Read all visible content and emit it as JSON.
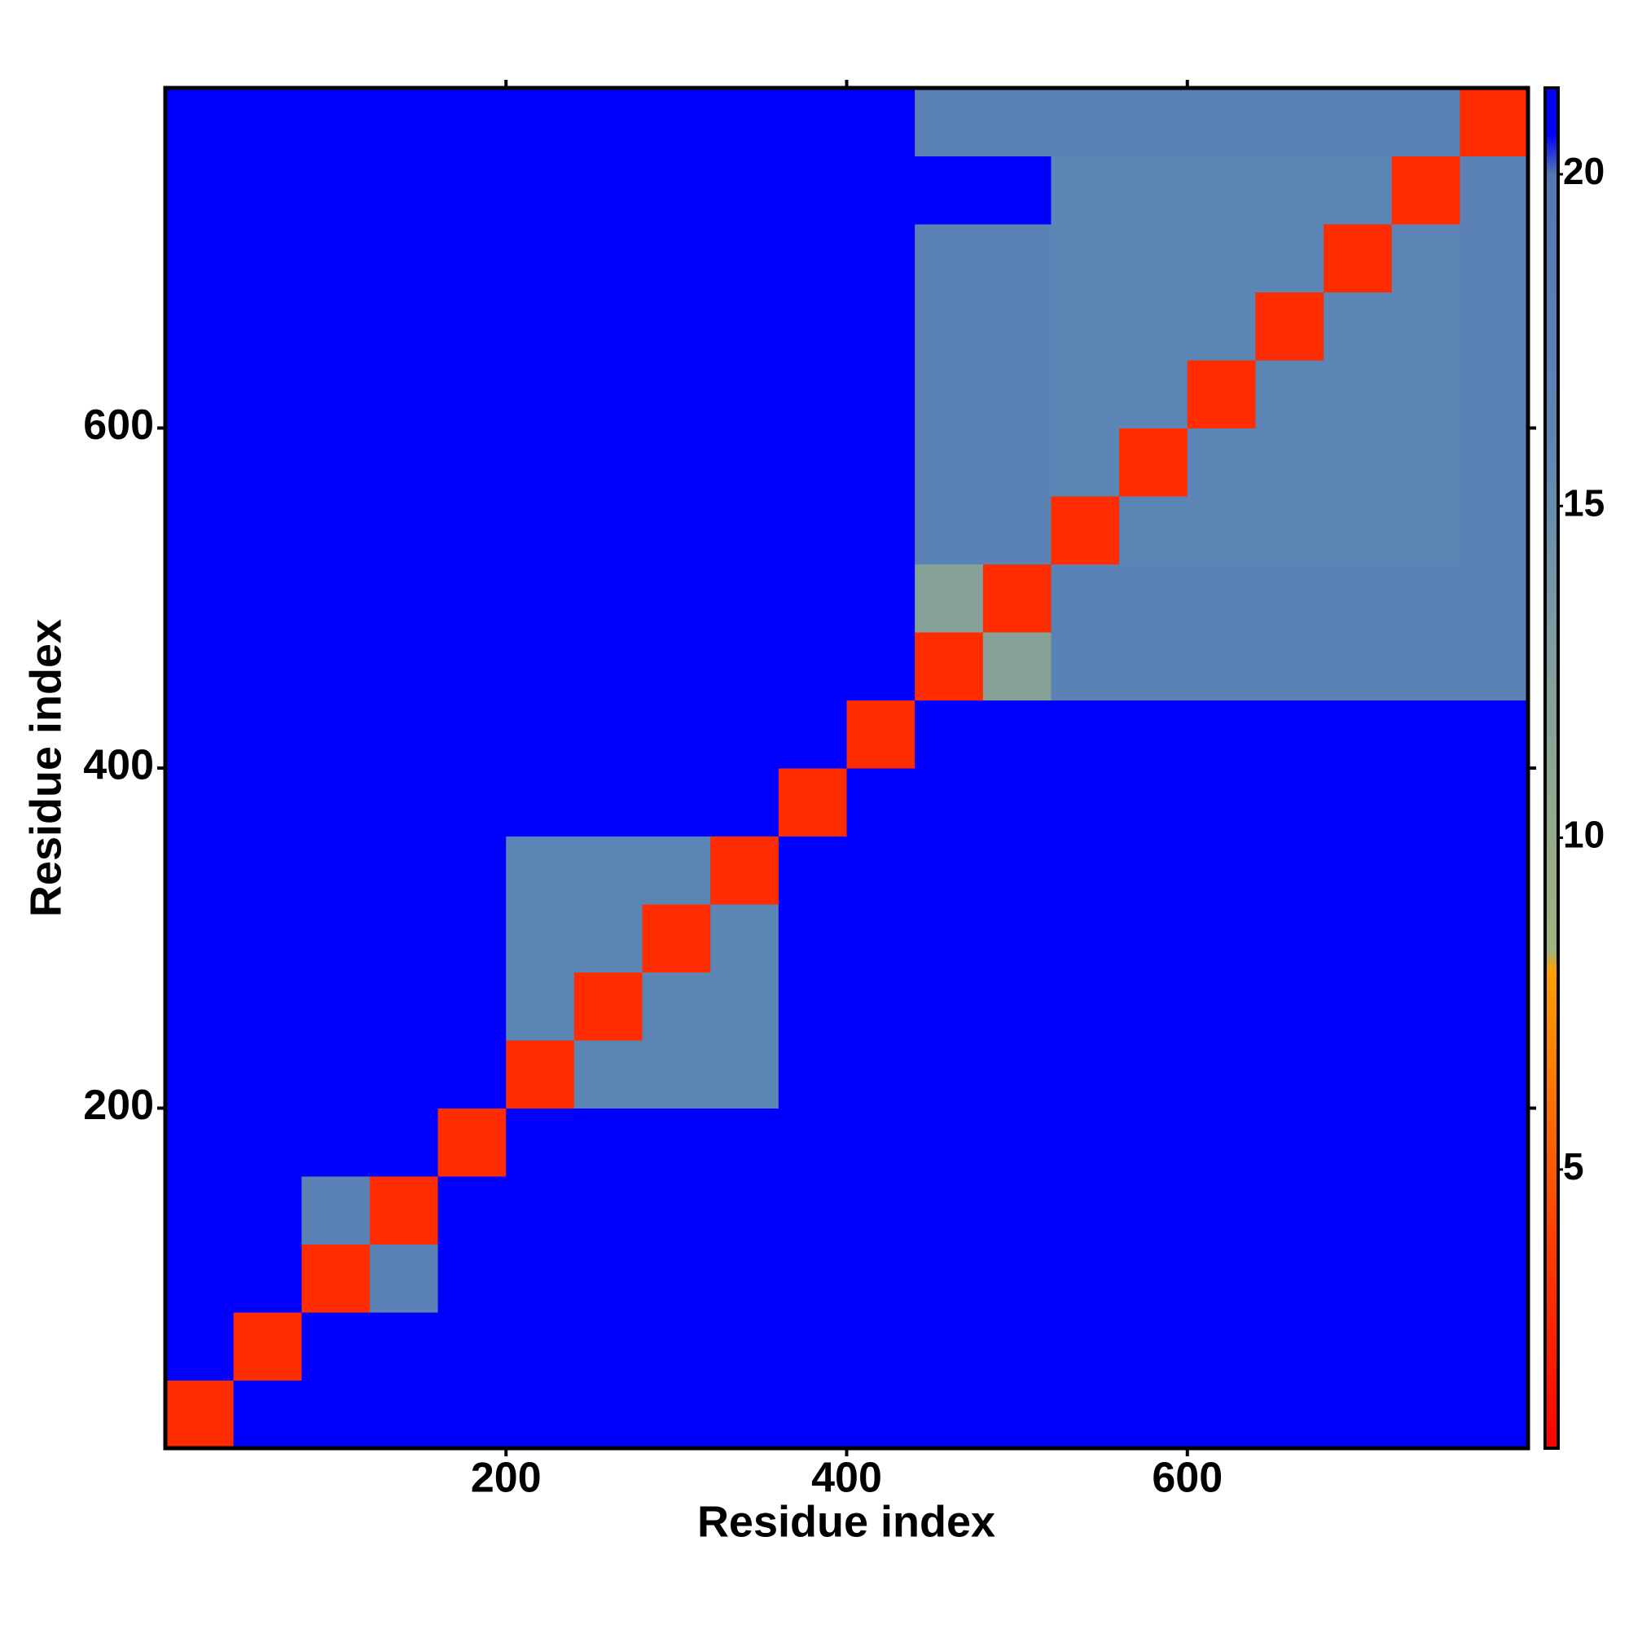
{
  "chart_data": {
    "type": "heatmap",
    "xlabel": "Residue index",
    "ylabel": "Residue index",
    "xlim": [
      0,
      800
    ],
    "ylim": [
      0,
      800
    ],
    "xticks": [
      200,
      400,
      600
    ],
    "yticks": [
      200,
      400,
      600
    ],
    "clim": [
      0.8,
      21.3
    ],
    "cticks": [
      5,
      10,
      15,
      20
    ],
    "colorscale": [
      [
        0.8,
        "#ff0000"
      ],
      [
        4,
        "#ff4000"
      ],
      [
        8,
        "#ffa000"
      ],
      [
        8.3,
        "#9fb37c"
      ],
      [
        13,
        "#7e9ca0"
      ],
      [
        16,
        "#5b85b5"
      ],
      [
        20,
        "#5577b0"
      ],
      [
        20.6,
        "#0000ff"
      ],
      [
        21.3,
        "#0000ff"
      ]
    ],
    "z": [
      [
        3,
        21,
        21,
        21,
        21,
        21,
        21,
        21,
        21,
        21,
        21,
        21,
        21,
        21,
        21,
        21,
        21,
        21,
        21,
        21
      ],
      [
        21,
        3,
        21,
        21,
        21,
        21,
        21,
        21,
        21,
        21,
        21,
        21,
        21,
        21,
        21,
        21,
        21,
        21,
        21,
        21
      ],
      [
        21,
        21,
        3,
        17,
        21,
        21,
        21,
        21,
        21,
        21,
        21,
        21,
        21,
        21,
        21,
        21,
        21,
        21,
        21,
        21
      ],
      [
        21,
        21,
        17,
        3,
        21,
        21,
        21,
        21,
        21,
        21,
        21,
        21,
        21,
        21,
        21,
        21,
        21,
        21,
        21,
        21
      ],
      [
        21,
        21,
        21,
        21,
        3,
        21,
        21,
        21,
        21,
        21,
        21,
        21,
        21,
        21,
        21,
        21,
        21,
        21,
        21,
        21
      ],
      [
        21,
        21,
        21,
        21,
        21,
        3,
        16,
        16,
        16,
        21,
        21,
        21,
        21,
        21,
        21,
        21,
        21,
        21,
        21,
        21
      ],
      [
        21,
        21,
        21,
        21,
        21,
        16,
        3,
        16,
        16,
        21,
        21,
        21,
        21,
        21,
        21,
        21,
        21,
        21,
        21,
        21
      ],
      [
        21,
        21,
        21,
        21,
        21,
        16,
        16,
        3,
        16,
        21,
        21,
        21,
        21,
        21,
        21,
        21,
        21,
        21,
        21,
        21
      ],
      [
        21,
        21,
        21,
        21,
        21,
        16,
        16,
        16,
        3,
        21,
        21,
        21,
        21,
        21,
        21,
        21,
        21,
        21,
        21,
        21
      ],
      [
        21,
        21,
        21,
        21,
        21,
        21,
        21,
        21,
        21,
        3,
        21,
        21,
        21,
        21,
        21,
        21,
        21,
        21,
        21,
        21
      ],
      [
        21,
        21,
        21,
        21,
        21,
        21,
        21,
        21,
        21,
        21,
        3,
        21,
        21,
        21,
        21,
        21,
        21,
        21,
        21,
        21
      ],
      [
        21,
        21,
        21,
        21,
        21,
        21,
        21,
        21,
        21,
        21,
        21,
        3,
        12,
        17,
        17,
        17,
        17,
        17,
        17,
        17
      ],
      [
        21,
        21,
        21,
        21,
        21,
        21,
        21,
        21,
        21,
        21,
        21,
        12,
        3,
        17,
        17,
        17,
        17,
        17,
        17,
        17
      ],
      [
        21,
        21,
        21,
        21,
        21,
        21,
        21,
        21,
        21,
        21,
        21,
        17,
        17,
        3,
        16,
        16,
        16,
        16,
        16,
        17
      ],
      [
        21,
        21,
        21,
        21,
        21,
        21,
        21,
        21,
        21,
        21,
        21,
        17,
        17,
        16,
        3,
        16,
        16,
        16,
        16,
        17
      ],
      [
        21,
        21,
        21,
        21,
        21,
        21,
        21,
        21,
        21,
        21,
        21,
        17,
        17,
        16,
        16,
        3,
        16,
        16,
        16,
        17
      ],
      [
        21,
        21,
        21,
        21,
        21,
        21,
        21,
        21,
        21,
        21,
        21,
        17,
        17,
        16,
        16,
        16,
        3,
        16,
        16,
        17
      ],
      [
        21,
        21,
        21,
        21,
        21,
        21,
        21,
        21,
        21,
        21,
        21,
        17,
        17,
        16,
        16,
        16,
        16,
        3,
        16,
        17
      ],
      [
        21,
        21,
        21,
        21,
        21,
        21,
        21,
        21,
        21,
        21,
        21,
        21,
        21,
        16,
        16,
        16,
        16,
        16,
        3,
        17
      ],
      [
        21,
        21,
        21,
        21,
        21,
        21,
        21,
        21,
        21,
        21,
        21,
        17,
        17,
        17,
        17,
        17,
        17,
        17,
        17,
        3
      ]
    ]
  }
}
